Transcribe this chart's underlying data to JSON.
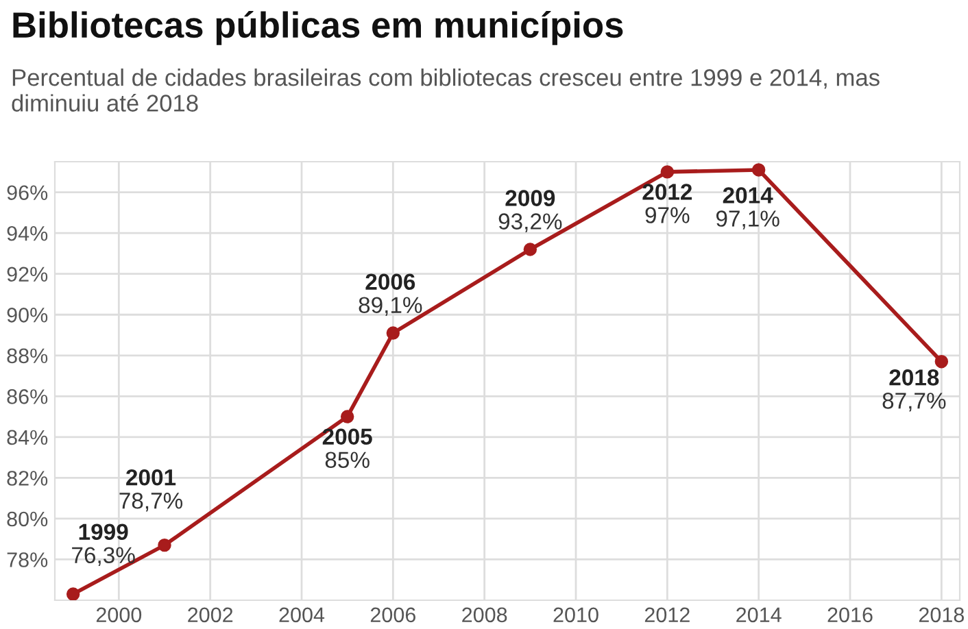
{
  "chart_data": {
    "type": "line",
    "title": "Bibliotecas públicas em municípios",
    "subtitle": "Percentual de cidades brasileiras com bibliotecas cresceu entre 1999 e 2014, mas diminuiu até 2018",
    "x": [
      1999,
      2001,
      2005,
      2006,
      2009,
      2012,
      2014,
      2018
    ],
    "series": [
      {
        "color": "#a81c1c",
        "values": [
          76.3,
          78.7,
          85,
          89.1,
          93.2,
          97,
          97.1,
          87.7
        ],
        "value_labels": [
          "76,3%",
          "78,7%",
          "85%",
          "89,1%",
          "93,2%",
          "97%",
          "97,1%",
          "87,7%"
        ]
      }
    ],
    "annotations": [
      {
        "text": "1999",
        "x": 1999,
        "y": 76.3
      },
      {
        "text": "2001",
        "x": 2001,
        "y": 78.7
      },
      {
        "text": "2005",
        "x": 2005,
        "y": 85
      },
      {
        "text": "2006",
        "x": 2006,
        "y": 89.1
      },
      {
        "text": "2009",
        "x": 2009,
        "y": 93.2
      },
      {
        "text": "2012",
        "x": 2012,
        "y": 97
      },
      {
        "text": "2014",
        "x": 2014,
        "y": 97.1
      },
      {
        "text": "2018",
        "x": 2018,
        "y": 87.7
      }
    ],
    "xlim": [
      1998.6,
      2018.4
    ],
    "ylim": [
      76,
      97.5
    ],
    "xticks": [
      2000,
      2002,
      2004,
      2006,
      2008,
      2010,
      2012,
      2014,
      2016,
      2018
    ],
    "yticks": [
      {
        "value": 78,
        "label": "78%"
      },
      {
        "value": 80,
        "label": "80%"
      },
      {
        "value": 82,
        "label": "82%"
      },
      {
        "value": 84,
        "label": "84%"
      },
      {
        "value": 86,
        "label": "86%"
      },
      {
        "value": 88,
        "label": "88%"
      },
      {
        "value": 90,
        "label": "90%"
      },
      {
        "value": 92,
        "label": "92%"
      },
      {
        "value": 94,
        "label": "94%"
      },
      {
        "value": 96,
        "label": "96%"
      }
    ],
    "grid": true,
    "marker": "circle",
    "line_style": "solid"
  }
}
